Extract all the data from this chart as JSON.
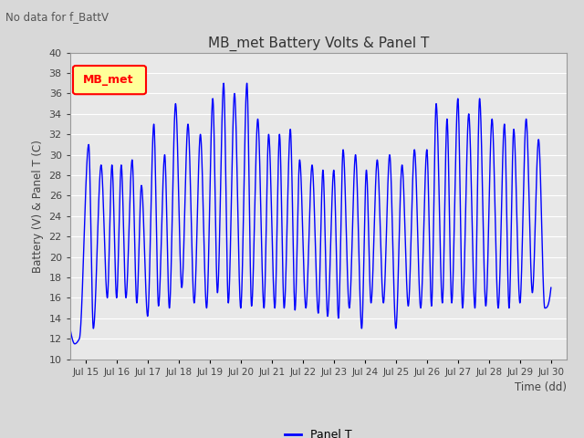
{
  "title": "MB_met Battery Volts & Panel T",
  "no_data_text": "No data for f_BattV",
  "ylabel": "Battery (V) & Panel T (C)",
  "xlabel": "Time (dd)",
  "xlim_start": 14.5,
  "xlim_end": 30.5,
  "ylim": [
    10,
    40
  ],
  "yticks": [
    10,
    12,
    14,
    16,
    18,
    20,
    22,
    24,
    26,
    28,
    30,
    32,
    34,
    36,
    38,
    40
  ],
  "xtick_labels": [
    "Jul 15",
    "Jul 16",
    "Jul 17",
    "Jul 18",
    "Jul 19",
    "Jul 20",
    "Jul 21",
    "Jul 22",
    "Jul 23",
    "Jul 24",
    "Jul 25",
    "Jul 26",
    "Jul 27",
    "Jul 28",
    "Jul 29",
    "Jul 30"
  ],
  "xtick_positions": [
    15,
    16,
    17,
    18,
    19,
    20,
    21,
    22,
    23,
    24,
    25,
    26,
    27,
    28,
    29,
    30
  ],
  "line_color": "blue",
  "line_width": 1.0,
  "legend_label": "Panel T",
  "legend_box_color": "#ffff99",
  "legend_box_edge": "red",
  "legend_box_text": "MB_met",
  "bg_color": "#d8d8d8",
  "plot_bg_color": "#e8e8e8",
  "grid_color": "#ffffff",
  "figsize": [
    6.4,
    4.8
  ],
  "dpi": 100
}
